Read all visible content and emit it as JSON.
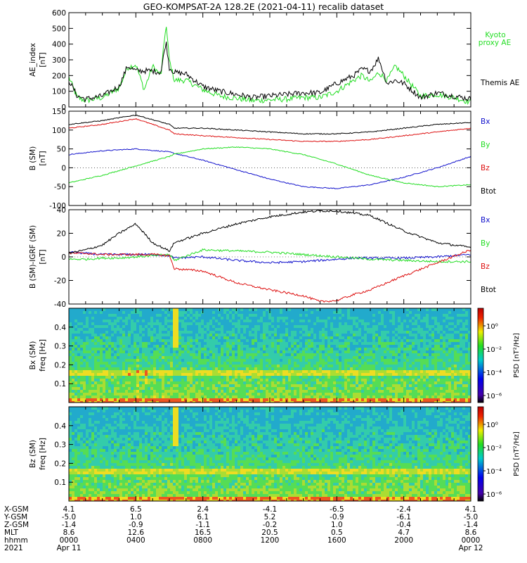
{
  "title": "GEO-KOMPSAT-2A 128.2E (2021-04-11) recalib dataset",
  "colors": {
    "black": "#000000",
    "green": "#22dd22",
    "red": "#dd1111",
    "blue": "#1111cc"
  },
  "chart_data": [
    {
      "type": "line",
      "panel": "AE index",
      "ylabel": [
        "AE_index",
        "[nT]"
      ],
      "ylim": [
        0,
        600
      ],
      "yticks": [
        "0",
        "100",
        "200",
        "300",
        "400",
        "500",
        "600"
      ],
      "legend": [
        "Kyoto",
        "proxy AE",
        "Themis AE"
      ],
      "x_hours": [
        0,
        0.5,
        1,
        2,
        3,
        3.5,
        4,
        4.5,
        5,
        5.5,
        5.8,
        6,
        6.3,
        7,
        8,
        9,
        10,
        11,
        12,
        13,
        14,
        15,
        16,
        17,
        17.5,
        18,
        18.5,
        19,
        19.5,
        20,
        21,
        22,
        23,
        24
      ],
      "series": [
        {
          "name": "Kyoto proxy AE",
          "color": "#22dd22",
          "values": [
            190,
            60,
            40,
            60,
            120,
            250,
            270,
            110,
            260,
            200,
            530,
            300,
            170,
            170,
            110,
            70,
            55,
            40,
            45,
            50,
            60,
            60,
            100,
            170,
            200,
            160,
            220,
            170,
            260,
            200,
            70,
            80,
            60,
            30
          ]
        },
        {
          "name": "Themis AE",
          "color": "#000000",
          "values": [
            170,
            70,
            50,
            70,
            130,
            260,
            230,
            230,
            230,
            220,
            420,
            250,
            220,
            210,
            130,
            100,
            80,
            60,
            70,
            80,
            90,
            90,
            150,
            200,
            240,
            230,
            310,
            150,
            170,
            150,
            60,
            90,
            70,
            50
          ]
        }
      ]
    },
    {
      "type": "line",
      "panel": "B (SM)",
      "ylabel": [
        "B (SM)",
        "[nT]"
      ],
      "ylim": [
        -100,
        150
      ],
      "yticks": [
        "-100",
        "-50",
        "0",
        "50",
        "100",
        "150"
      ],
      "legend": [
        "Bx",
        "By",
        "Bz",
        "Btot"
      ],
      "x_hours": [
        0,
        2,
        4,
        6,
        6.3,
        8,
        10,
        12,
        14,
        16,
        18,
        20,
        22,
        24
      ],
      "series": [
        {
          "name": "Bx",
          "color": "#1111cc",
          "values": [
            35,
            45,
            50,
            42,
            38,
            20,
            -5,
            -30,
            -50,
            -55,
            -45,
            -25,
            0,
            30
          ]
        },
        {
          "name": "By",
          "color": "#22dd22",
          "values": [
            -40,
            -20,
            5,
            30,
            36,
            50,
            55,
            50,
            35,
            10,
            -20,
            -40,
            -50,
            -45
          ]
        },
        {
          "name": "Bz",
          "color": "#dd1111",
          "values": [
            105,
            115,
            130,
            100,
            90,
            85,
            80,
            75,
            70,
            70,
            75,
            85,
            95,
            105
          ]
        },
        {
          "name": "Btot",
          "color": "#000000",
          "values": [
            115,
            125,
            140,
            115,
            105,
            105,
            100,
            95,
            90,
            90,
            95,
            105,
            115,
            120
          ]
        }
      ]
    },
    {
      "type": "line",
      "panel": "B (SM) - IGRF (SM)",
      "ylabel": [
        "B (SM)-IGRF (SM)",
        "[nT]"
      ],
      "ylim": [
        -40,
        40
      ],
      "yticks": [
        "-40",
        "-20",
        "0",
        "20",
        "40"
      ],
      "legend": [
        "Bx",
        "By",
        "Bz",
        "Btot"
      ],
      "x_hours": [
        0,
        1,
        2,
        3,
        4,
        5,
        6,
        6.3,
        8,
        10,
        12,
        14,
        15,
        16,
        17,
        18,
        20,
        22,
        24
      ],
      "series": [
        {
          "name": "Bx",
          "color": "#1111cc",
          "values": [
            4,
            3,
            2,
            2,
            2,
            2,
            1,
            -1,
            0,
            -3,
            -5,
            -4,
            -3,
            -2,
            -1,
            -1,
            -1,
            0,
            2
          ]
        },
        {
          "name": "By",
          "color": "#22dd22",
          "values": [
            -2,
            -2,
            -1,
            -1,
            0,
            1,
            2,
            -3,
            6,
            5,
            4,
            2,
            1,
            0,
            -1,
            -2,
            -3,
            -4,
            -4
          ]
        },
        {
          "name": "Bz",
          "color": "#dd1111",
          "values": [
            3,
            3,
            2,
            2,
            2,
            2,
            1,
            -10,
            -12,
            -22,
            -28,
            -33,
            -38,
            -37,
            -32,
            -28,
            -16,
            -5,
            6
          ]
        },
        {
          "name": "Btot",
          "color": "#000000",
          "values": [
            3,
            6,
            10,
            20,
            28,
            12,
            5,
            12,
            20,
            28,
            34,
            38,
            39,
            39,
            37,
            35,
            22,
            12,
            8
          ]
        }
      ]
    },
    {
      "type": "heatmap",
      "panel": "Bx (SM) spectrogram",
      "ylabel": [
        "Bx (SM)",
        "freq [Hz]"
      ],
      "ylim": [
        0,
        0.5
      ],
      "yticks": [
        "0.1",
        "0.2",
        "0.3",
        "0.4"
      ],
      "colorbar_label": "PSD [nT²/Hz]",
      "colorbar_ticks": [
        "10⁰",
        "10⁻²",
        "10⁻⁴",
        "10⁻⁶"
      ]
    },
    {
      "type": "heatmap",
      "panel": "Bz (SM) spectrogram",
      "ylabel": [
        "Bz (SM)",
        "freq [Hz]"
      ],
      "ylim": [
        0,
        0.5
      ],
      "yticks": [
        "0.1",
        "0.2",
        "0.3",
        "0.4"
      ],
      "colorbar_label": "PSD [nT²/Hz]",
      "colorbar_ticks": [
        "10⁰",
        "10⁻²",
        "10⁻⁴",
        "10⁻⁶"
      ]
    }
  ],
  "ephemeris": {
    "row_labels": [
      "X-GSM",
      "Y-GSM",
      "Z-GSM",
      "MLT",
      "hhmm",
      "2021"
    ],
    "columns": [
      [
        "4.1",
        "-5.0",
        "-1.4",
        "8.6",
        "0000",
        "Apr 11"
      ],
      [
        "6.5",
        "1.0",
        "-0.9",
        "12.6",
        "0400",
        ""
      ],
      [
        "2.4",
        "6.1",
        "-1.1",
        "16.5",
        "0800",
        ""
      ],
      [
        "-4.1",
        "5.2",
        "-0.2",
        "20.5",
        "1200",
        ""
      ],
      [
        "-6.5",
        "-0.9",
        "1.0",
        "0.5",
        "1600",
        ""
      ],
      [
        "-2.4",
        "-6.1",
        "-0.4",
        "4.7",
        "2000",
        ""
      ],
      [
        "4.1",
        "-5.0",
        "-1.4",
        "8.6",
        "0000",
        "Apr 12"
      ]
    ]
  }
}
